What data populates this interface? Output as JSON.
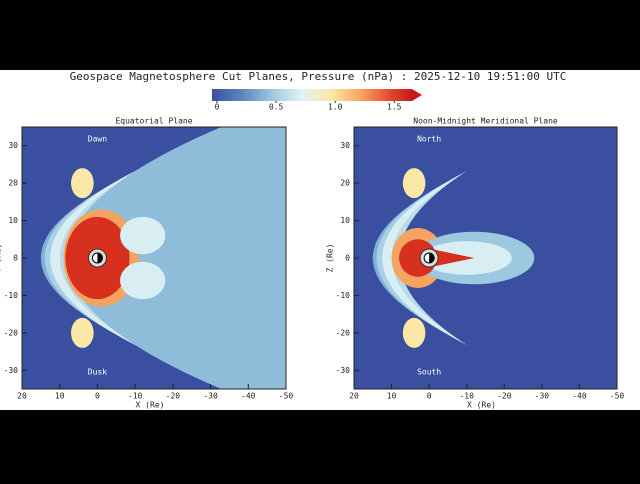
{
  "title": "Geospace Magnetosphere Cut Planes, Pressure (nPa) : 2025-12-10 19:51:00 UTC",
  "colorbar": {
    "lim": [
      0,
      1.65
    ],
    "ticks": [
      0,
      0.5,
      {
        "value": 1.0,
        "label": "1.0"
      },
      {
        "value": 1.5,
        "label": "1.5"
      }
    ]
  },
  "panels": [
    {
      "title": "Equatorial Plane",
      "xlabel": "X (Re)",
      "ylabel": "Y (Re)",
      "xlim": [
        20,
        -50
      ],
      "ylim": [
        -35,
        35
      ],
      "xticks": [
        20,
        10,
        0,
        -10,
        -20,
        -30,
        -40,
        -50
      ],
      "yticks": [
        -30,
        -20,
        -10,
        0,
        10,
        20,
        30
      ],
      "annotations": [
        "Dawn",
        "Dusk"
      ]
    },
    {
      "title": "Noon-Midnight Meridional Plane",
      "xlabel": "X (Re)",
      "ylabel": "Z (Re)",
      "xlim": [
        20,
        -50
      ],
      "ylim": [
        -35,
        35
      ],
      "xticks": [
        20,
        10,
        0,
        -10,
        -20,
        -30,
        -40,
        -50
      ],
      "yticks": [
        -30,
        -20,
        -10,
        0,
        10,
        20,
        30
      ],
      "annotations": [
        "North",
        "South"
      ]
    }
  ]
}
